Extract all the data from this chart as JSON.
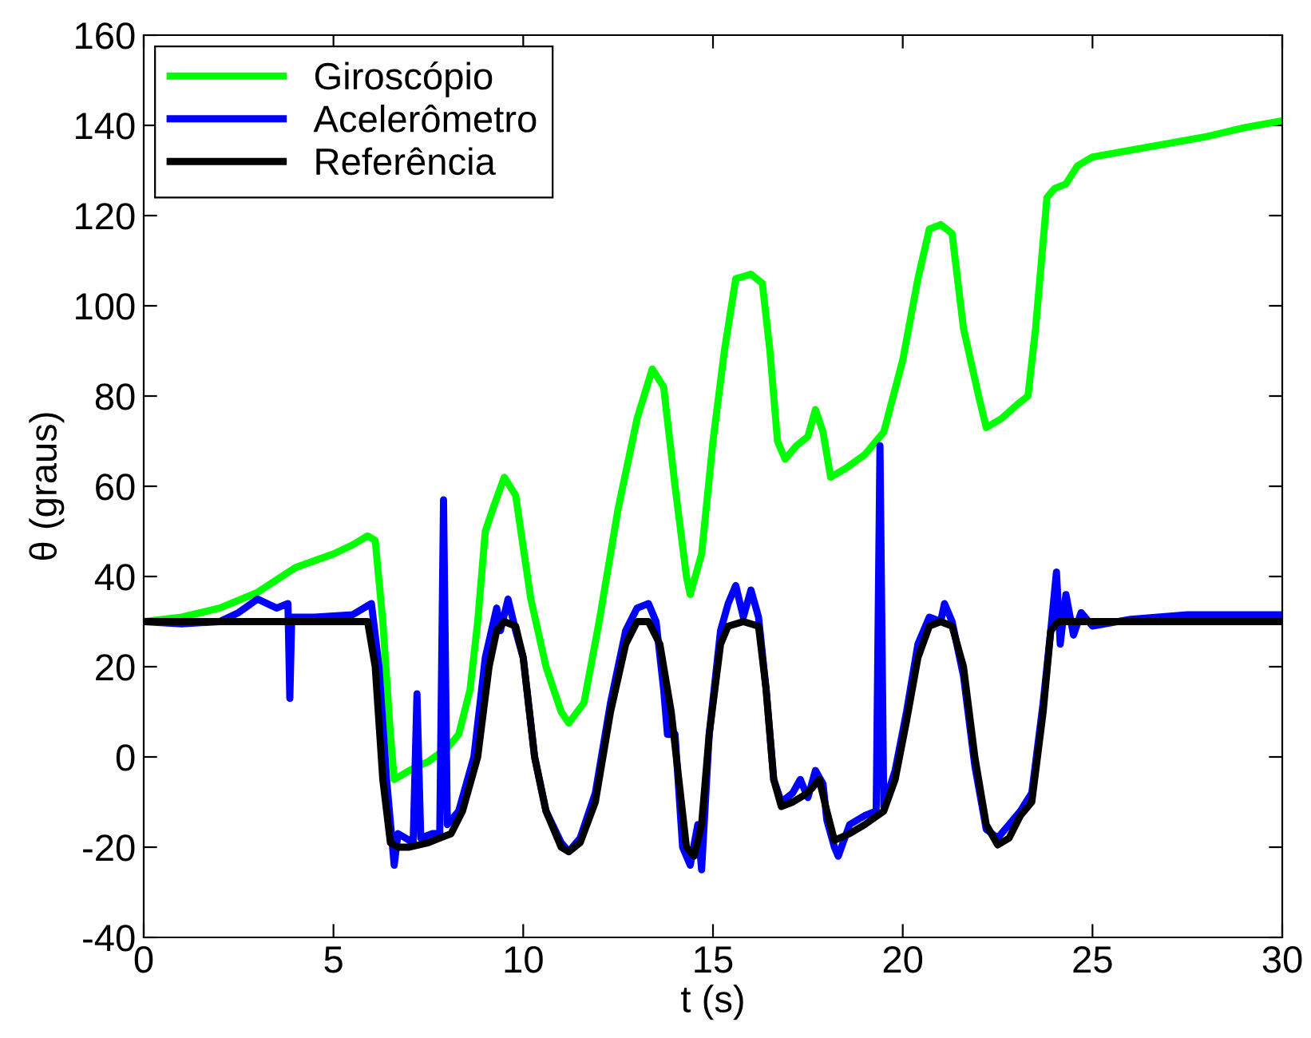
{
  "chart_data": {
    "type": "line",
    "xlabel": "t (s)",
    "ylabel": "θ (graus)",
    "xlim": [
      0,
      30
    ],
    "ylim": [
      -40,
      160
    ],
    "xticks": [
      0,
      5,
      10,
      15,
      20,
      25,
      30
    ],
    "yticks": [
      -40,
      -20,
      0,
      20,
      40,
      60,
      80,
      100,
      120,
      140,
      160
    ],
    "grid": false,
    "legend": "top left",
    "marker": "none",
    "line_style": "solid",
    "series": [
      {
        "name": "Giroscópio",
        "color": "#00ff00",
        "x": [
          0,
          1,
          2,
          3,
          4,
          5,
          5.5,
          5.9,
          6.1,
          6.3,
          6.5,
          6.6,
          7,
          7.5,
          8,
          8.3,
          8.6,
          8.8,
          9,
          9.2,
          9.5,
          9.8,
          10.2,
          10.6,
          11,
          11.2,
          11.6,
          12,
          12.5,
          13,
          13.4,
          13.7,
          14,
          14.3,
          14.4,
          14.7,
          15,
          15.3,
          15.6,
          16,
          16.3,
          16.5,
          16.7,
          16.9,
          17.2,
          17.5,
          17.7,
          17.9,
          18.1,
          18.5,
          19,
          19.5,
          20,
          20.4,
          20.7,
          21,
          21.3,
          21.6,
          22,
          22.2,
          22.6,
          23,
          23.3,
          23.5,
          23.8,
          24,
          24.3,
          24.6,
          25,
          26,
          27,
          28,
          29,
          30
        ],
        "values": [
          30,
          31,
          33,
          36.5,
          42,
          45,
          47,
          49,
          48,
          30,
          5,
          -5,
          -3,
          -1,
          2,
          5,
          15,
          30,
          50,
          55,
          62,
          58,
          35,
          20,
          10,
          7.5,
          12,
          30,
          55,
          75,
          86,
          82,
          60,
          40,
          36,
          45,
          70,
          90,
          106,
          107,
          105,
          90,
          70,
          66,
          69,
          71,
          77,
          72,
          62,
          64,
          67,
          72,
          88,
          106,
          117,
          118,
          116,
          95,
          80,
          73,
          75,
          78,
          80,
          95,
          124,
          126,
          127,
          131,
          133,
          134.5,
          136,
          137.5,
          139.5,
          141
        ]
      },
      {
        "name": "Acelerômetro",
        "color": "#0000ff",
        "x": [
          0,
          1,
          2,
          2.5,
          3,
          3.5,
          3.8,
          3.85,
          3.9,
          4.5,
          5.5,
          6,
          6.2,
          6.4,
          6.6,
          6.7,
          7.1,
          7.2,
          7.3,
          7.6,
          7.8,
          7.9,
          8,
          8.3,
          8.7,
          9,
          9.3,
          9.4,
          9.6,
          9.8,
          10,
          10.3,
          10.6,
          11,
          11.2,
          11.5,
          11.9,
          12.3,
          12.7,
          13,
          13.3,
          13.5,
          13.7,
          13.8,
          14,
          14.2,
          14.4,
          14.6,
          14.7,
          14.9,
          15.2,
          15.4,
          15.6,
          15.8,
          16,
          16.2,
          16.4,
          16.6,
          16.8,
          17.1,
          17.3,
          17.5,
          17.7,
          17.9,
          18,
          18.2,
          18.3,
          18.6,
          19,
          19.3,
          19.4,
          19.5,
          19.8,
          20.1,
          20.4,
          20.7,
          21,
          21.1,
          21.3,
          21.6,
          21.9,
          22.2,
          22.5,
          22.8,
          23.1,
          23.4,
          23.7,
          23.9,
          24.05,
          24.15,
          24.3,
          24.5,
          24.7,
          25,
          26,
          27.5,
          30
        ],
        "values": [
          30,
          29.5,
          30,
          32,
          35,
          33,
          34,
          13,
          31,
          31,
          31.5,
          34,
          20,
          -5,
          -24,
          -17,
          -19,
          14,
          -18,
          -17,
          -17,
          57,
          -15,
          -12,
          0,
          22,
          33,
          28,
          35,
          28,
          22,
          0,
          -12,
          -19,
          -21,
          -18,
          -8,
          12,
          28,
          33,
          34,
          30,
          15,
          5,
          5,
          -20,
          -24,
          -15,
          -25,
          5,
          28,
          34,
          38,
          31,
          37,
          31,
          15,
          -5,
          -10,
          -8,
          -5,
          -9,
          -3,
          -6,
          -14,
          -20,
          -22,
          -15,
          -13,
          -12,
          69,
          -11,
          -3,
          10,
          25,
          31,
          30,
          34,
          30,
          18,
          -2,
          -16,
          -18,
          -15,
          -12,
          -8,
          12,
          28,
          41,
          25,
          36,
          27,
          32,
          29,
          30.5,
          31.5,
          31.5
        ]
      },
      {
        "name": "Referência",
        "color": "#000000",
        "x": [
          0,
          5.9,
          6.1,
          6.3,
          6.5,
          6.7,
          7,
          7.5,
          7.8,
          8.1,
          8.4,
          8.8,
          9.1,
          9.3,
          9.5,
          9.8,
          10,
          10.3,
          10.6,
          11,
          11.2,
          11.5,
          11.9,
          12.3,
          12.7,
          13,
          13.3,
          13.6,
          13.9,
          14.1,
          14.3,
          14.5,
          14.7,
          14.9,
          15.2,
          15.4,
          15.8,
          16.2,
          16.4,
          16.6,
          16.8,
          17.1,
          17.4,
          17.6,
          17.8,
          18,
          18.2,
          18.6,
          19,
          19.5,
          19.8,
          20.1,
          20.4,
          20.7,
          21,
          21.3,
          21.6,
          21.9,
          22.2,
          22.5,
          22.8,
          23.1,
          23.4,
          23.7,
          23.9,
          24.1,
          30
        ],
        "values": [
          30,
          30,
          20,
          -5,
          -19,
          -20,
          -20,
          -19,
          -18,
          -17,
          -12,
          0,
          20,
          28,
          30,
          29,
          22,
          0,
          -12,
          -20,
          -21,
          -19,
          -10,
          10,
          25,
          30,
          30,
          25,
          10,
          -5,
          -20,
          -22,
          -15,
          5,
          25,
          29,
          30,
          29,
          15,
          -5,
          -11,
          -10,
          -8.5,
          -7,
          -5,
          -12,
          -18.5,
          -17,
          -15,
          -12,
          -5,
          8,
          22,
          29,
          30,
          29,
          20,
          0,
          -15,
          -19.5,
          -18,
          -13,
          -10,
          10,
          28,
          30,
          30
        ]
      }
    ]
  }
}
